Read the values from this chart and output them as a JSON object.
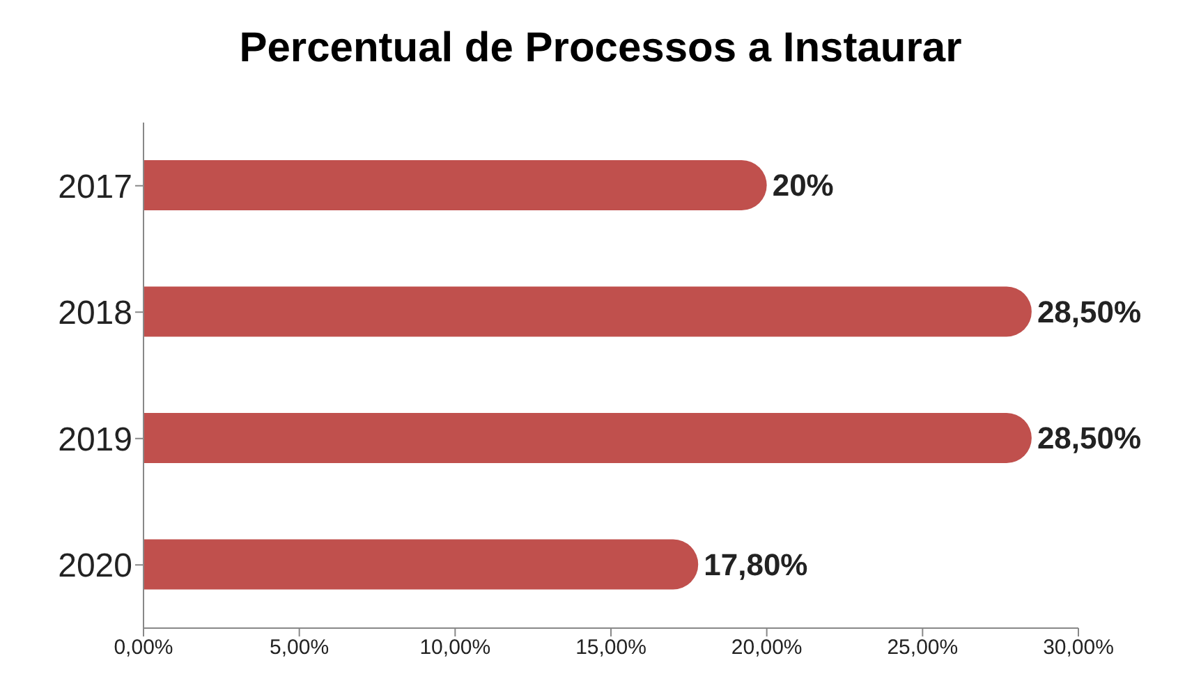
{
  "chart_data": {
    "type": "bar",
    "orientation": "horizontal",
    "title": "Percentual de Processos a Instaurar",
    "categories": [
      "2017",
      "2018",
      "2019",
      "2020"
    ],
    "values": [
      20,
      28.5,
      28.5,
      17.8
    ],
    "value_labels": [
      "20%",
      "28,50%",
      "28,50%",
      "17,80%"
    ],
    "color": "#c0504d",
    "xlim": [
      0,
      30
    ],
    "xticks": [
      {
        "value": 0,
        "label": "0,00%"
      },
      {
        "value": 5,
        "label": "5,00%"
      },
      {
        "value": 10,
        "label": "10,00%"
      },
      {
        "value": 15,
        "label": "15,00%"
      },
      {
        "value": 20,
        "label": "20,00%"
      },
      {
        "value": 25,
        "label": "25,00%"
      },
      {
        "value": 30,
        "label": "30,00%"
      }
    ]
  }
}
